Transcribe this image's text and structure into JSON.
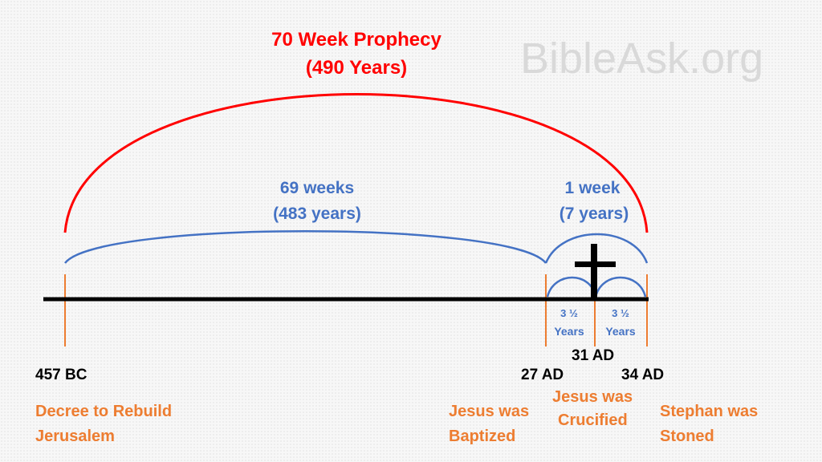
{
  "watermark": "BibleAsk.org",
  "title": {
    "line1": "70 Week Prophecy",
    "line2": "(490 Years)"
  },
  "spans": {
    "sixty_nine": {
      "line1": "69 weeks",
      "line2": "(483 years)"
    },
    "one_week": {
      "line1": "1 week",
      "line2": "(7 years)"
    },
    "half_left": {
      "line1": "3 ½",
      "line2": "Years"
    },
    "half_right": {
      "line1": "3 ½",
      "line2": "Years"
    }
  },
  "dates": {
    "start": "457 BC",
    "baptism": "27 AD",
    "crucifixion": "31 AD",
    "end": "34 AD"
  },
  "events": {
    "decree": {
      "line1": "Decree to Rebuild",
      "line2": "Jerusalem"
    },
    "baptized": {
      "line1": "Jesus was",
      "line2": "Baptized"
    },
    "crucified": {
      "line1": "Jesus was",
      "line2": "Crucified"
    },
    "stoned": {
      "line1": "Stephan was",
      "line2": "Stoned"
    }
  },
  "colors": {
    "prophecy": "#ff0000",
    "spans": "#4472c4",
    "events": "#ed7d31",
    "timeline": "#000000"
  },
  "icons": [
    "cross-icon"
  ]
}
